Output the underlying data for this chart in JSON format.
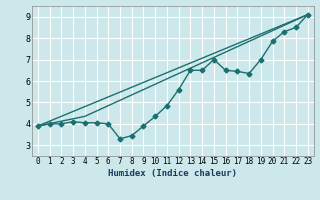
{
  "xlabel": "Humidex (Indice chaleur)",
  "ylabel": "",
  "xlim": [
    -0.5,
    23.5
  ],
  "ylim": [
    2.5,
    9.5
  ],
  "xticks": [
    0,
    1,
    2,
    3,
    4,
    5,
    6,
    7,
    8,
    9,
    10,
    11,
    12,
    13,
    14,
    15,
    16,
    17,
    18,
    19,
    20,
    21,
    22,
    23
  ],
  "yticks": [
    3,
    4,
    5,
    6,
    7,
    8,
    9
  ],
  "bg_color": "#cce8ea",
  "line_color": "#1a7070",
  "grid_color": "#ffffff",
  "line1_x": [
    0,
    1,
    2,
    3,
    4,
    5,
    6,
    7,
    8,
    9,
    10,
    11,
    12,
    13,
    14,
    15,
    16,
    17,
    18,
    19,
    20,
    21,
    22,
    23
  ],
  "line1_y": [
    3.9,
    4.0,
    4.0,
    4.1,
    4.05,
    4.05,
    4.0,
    3.3,
    3.45,
    3.9,
    4.35,
    4.85,
    5.6,
    6.5,
    6.5,
    7.0,
    6.5,
    6.45,
    6.35,
    7.0,
    7.85,
    8.3,
    8.5,
    9.1
  ],
  "line2_x": [
    0,
    23
  ],
  "line2_y": [
    3.9,
    9.1
  ],
  "line3_x": [
    0,
    4,
    23
  ],
  "line3_y": [
    3.9,
    4.35,
    9.1
  ],
  "marker_size": 2.5,
  "line_width": 1.0
}
